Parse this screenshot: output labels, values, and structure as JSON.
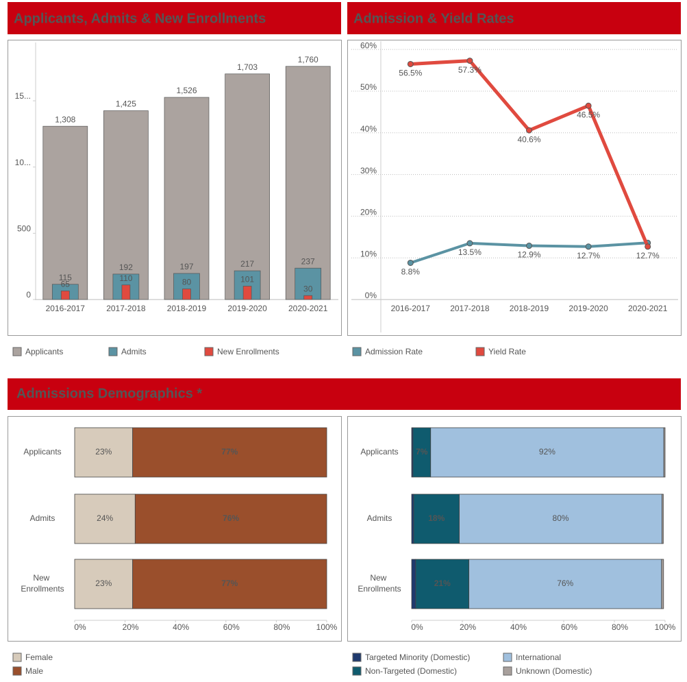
{
  "chart_data": [
    {
      "type": "bar",
      "title": "Applicants, Admits & New Enrollments",
      "categories": [
        "2016-2017",
        "2017-2018",
        "2018-2019",
        "2019-2020",
        "2020-2021"
      ],
      "series": [
        {
          "name": "Applicants",
          "color": "#aba39f",
          "values": [
            1308,
            1425,
            1526,
            1703,
            1760
          ],
          "value_labels": [
            "1,308",
            "1,425",
            "1,526",
            "1,703",
            "1,760"
          ]
        },
        {
          "name": "Admits",
          "color": "#5b93a3",
          "values": [
            115,
            192,
            197,
            217,
            237
          ]
        },
        {
          "name": "New Enrollments",
          "color": "#e04a3f",
          "values": [
            65,
            110,
            80,
            101,
            30
          ]
        }
      ],
      "ylim": [
        0,
        1940
      ],
      "yticks": [
        0,
        500,
        {
          "value": 1000,
          "label": "10..."
        },
        {
          "value": 1500,
          "label": "15..."
        }
      ],
      "grid": false,
      "legend": "bottom"
    },
    {
      "type": "line",
      "title": "Admission & Yield Rates",
      "categories": [
        "2016-2017",
        "2017-2018",
        "2018-2019",
        "2019-2020",
        "2020-2021"
      ],
      "series": [
        {
          "name": "Admission Rate",
          "color": "#5b93a3",
          "values": [
            8.8,
            13.5,
            12.9,
            12.7,
            13.6
          ],
          "value_labels": [
            "8.8%",
            "13.5%",
            "12.9%",
            "12.7%",
            null
          ]
        },
        {
          "name": "Yield Rate",
          "color": "#e04a3f",
          "values": [
            56.5,
            57.3,
            40.6,
            46.5,
            12.7
          ],
          "value_labels": [
            "56.5%",
            "57.3%",
            "40.6%",
            "46.5%",
            "12.7%"
          ]
        }
      ],
      "ylim": [
        0,
        62
      ],
      "yticks": [
        {
          "value": 0,
          "label": "0%"
        },
        {
          "value": 10,
          "label": "10%"
        },
        {
          "value": 20,
          "label": "20%"
        },
        {
          "value": 30,
          "label": "30%"
        },
        {
          "value": 40,
          "label": "40%"
        },
        {
          "value": 50,
          "label": "50%"
        },
        {
          "value": 60,
          "label": "60%"
        }
      ],
      "grid": true,
      "legend": "bottom"
    },
    {
      "type": "stacked-bar",
      "title": "Admissions Demographics *",
      "categories": [
        "Applicants",
        "Admits",
        "New Enrollments"
      ],
      "series": [
        {
          "name": "Female",
          "color": "#d7cbbb",
          "values": [
            23,
            24,
            23
          ],
          "value_labels": [
            "23%",
            "24%",
            "23%"
          ]
        },
        {
          "name": "Male",
          "color": "#9a4f2c",
          "values": [
            77,
            76,
            77
          ],
          "value_labels": [
            "77%",
            "76%",
            "77%"
          ]
        }
      ],
      "xlim": [
        0,
        100
      ],
      "xticks": [
        {
          "value": 0,
          "label": "0%"
        },
        {
          "value": 20,
          "label": "20%"
        },
        {
          "value": 40,
          "label": "40%"
        },
        {
          "value": 60,
          "label": "60%"
        },
        {
          "value": 80,
          "label": "80%"
        },
        {
          "value": 100,
          "label": "100%"
        }
      ],
      "legend": "bottom"
    },
    {
      "type": "stacked-bar",
      "categories": [
        "Applicants",
        "Admits",
        "New Enrollments"
      ],
      "series": [
        {
          "name": "Targeted Minority (Domestic)",
          "color": "#1f3a6e",
          "values": [
            0.5,
            0.8,
            1.6
          ]
        },
        {
          "name": "Non-Targeted (Domestic)",
          "color": "#0f5b6e",
          "values": [
            7,
            18,
            21
          ],
          "value_labels": [
            "7%",
            "18%",
            "21%"
          ]
        },
        {
          "name": "International",
          "color": "#a0c0de",
          "values": [
            92,
            80,
            76
          ],
          "value_labels": [
            "92%",
            "80%",
            "76%"
          ]
        },
        {
          "name": "Unknown (Domestic)",
          "color": "#a8a09c",
          "values": [
            0.5,
            0.5,
            0.8
          ]
        }
      ],
      "xlim": [
        0,
        100
      ],
      "xticks": [
        {
          "value": 0,
          "label": "0%"
        },
        {
          "value": 20,
          "label": "20%"
        },
        {
          "value": 40,
          "label": "40%"
        },
        {
          "value": 60,
          "label": "60%"
        },
        {
          "value": 80,
          "label": "80%"
        },
        {
          "value": 100,
          "label": "100%"
        }
      ],
      "legend": "bottom"
    }
  ]
}
